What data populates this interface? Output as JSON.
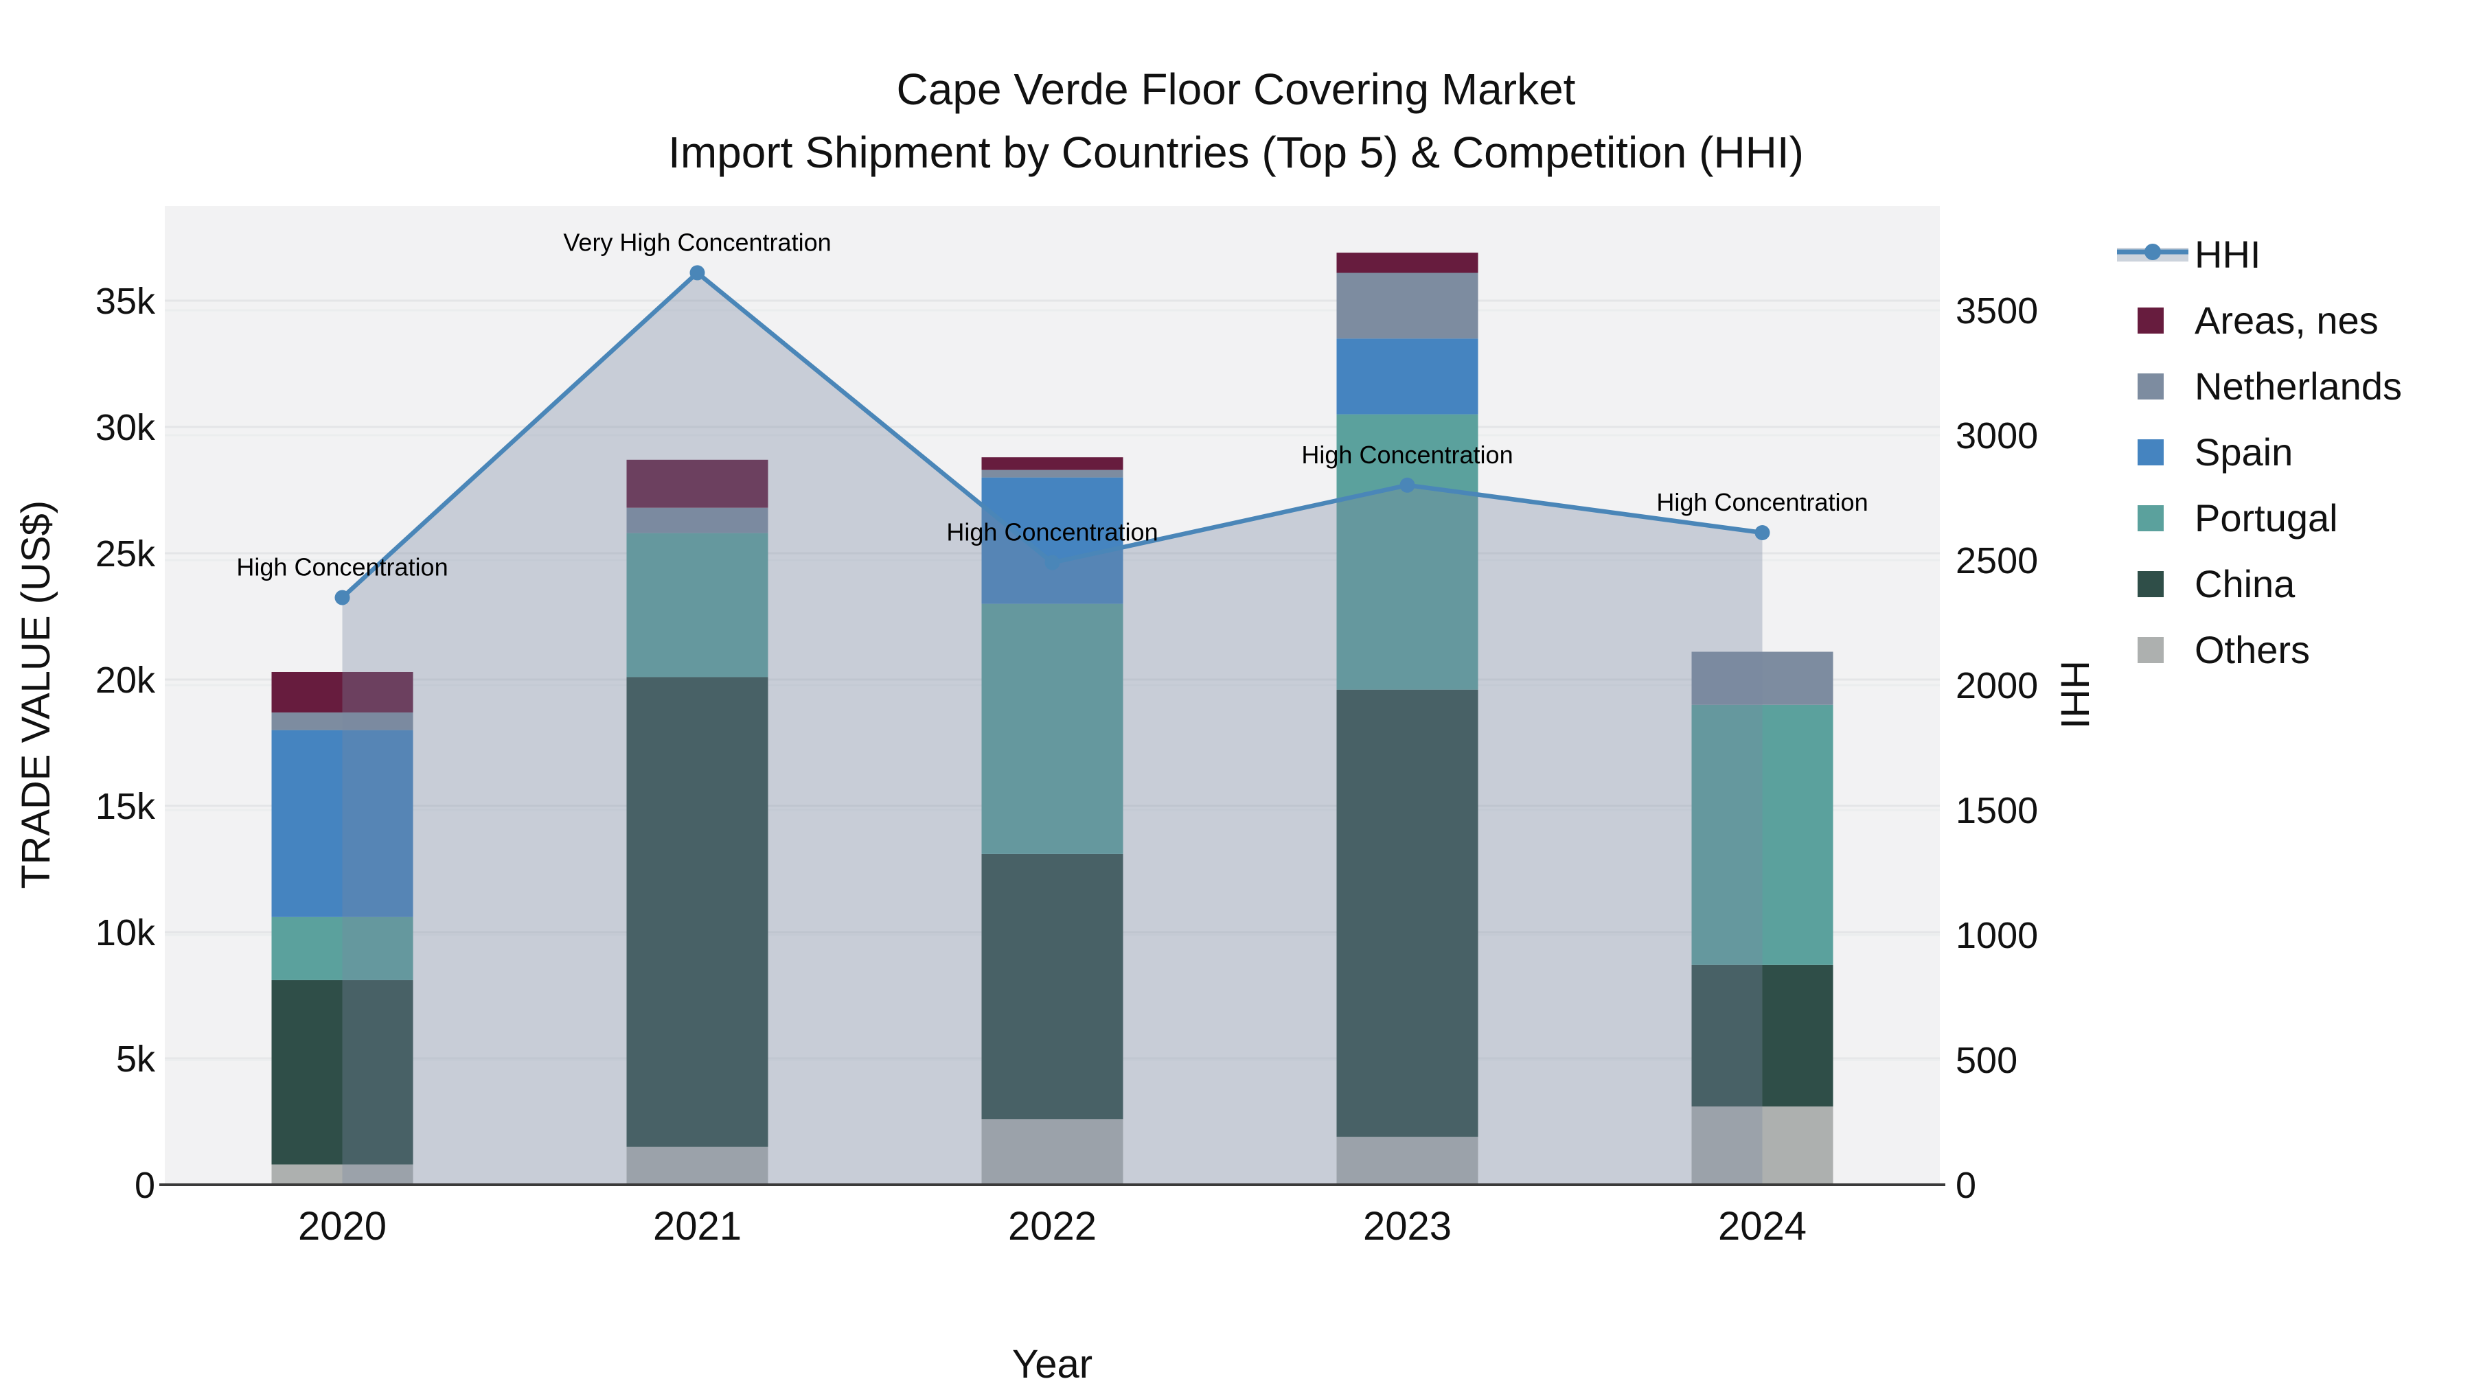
{
  "title": {
    "line1": "Cape Verde Floor Covering Market",
    "line2": "Import Shipment by Countries (Top 5) & Competition (HHI)"
  },
  "axes": {
    "x": {
      "label": "Year",
      "categories": [
        "2020",
        "2021",
        "2022",
        "2023",
        "2024"
      ]
    },
    "y_left": {
      "label": "TRADE VALUE (US$)",
      "tick_labels": [
        "0",
        "5k",
        "10k",
        "15k",
        "20k",
        "25k",
        "30k",
        "35k"
      ],
      "tick_values": [
        0,
        5000,
        10000,
        15000,
        20000,
        25000,
        30000,
        35000
      ]
    },
    "y_right": {
      "label": "HHI",
      "tick_labels": [
        "0",
        "500",
        "1000",
        "1500",
        "2000",
        "2500",
        "3000",
        "3500"
      ],
      "tick_values": [
        0,
        500,
        1000,
        1500,
        2000,
        2500,
        3000,
        3500
      ]
    }
  },
  "legend": {
    "entries": [
      "HHI",
      "Areas, nes",
      "Netherlands",
      "Spain",
      "Portugal",
      "China",
      "Others"
    ]
  },
  "colors": {
    "hhi_line": "#4a86b8",
    "hhi_area_fill": "rgba(121,136,161,0.34)",
    "hhi_area_swatch": "#ccd3dc",
    "plot_bg": "#f2f2f3",
    "grid_left": "#e4e5e7",
    "grid_right": "#ebedee",
    "axis_line": "#3a3a3a",
    "series": {
      "Areas, nes": "#671c3e",
      "Netherlands": "#7d8ca0",
      "Spain": "#4584c0",
      "Portugal": "#5ba19d",
      "China": "#2f4e48",
      "Others": "#adb0af"
    }
  },
  "chart_data": {
    "type": "bar",
    "subtype": "stacked-bars-with-dual-axis-line",
    "title": "Cape Verde Floor Covering Market — Import Shipment by Countries (Top 5) & Competition (HHI)",
    "xlabel": "Year",
    "ylabel_left": "TRADE VALUE (US$)",
    "ylabel_right": "HHI",
    "ylim_left": [
      0,
      38750
    ],
    "ylim_right": [
      0,
      3920
    ],
    "grid": true,
    "legend_position": "right",
    "categories": [
      "2020",
      "2021",
      "2022",
      "2023",
      "2024"
    ],
    "series": [
      {
        "name": "Others",
        "values": [
          800,
          1500,
          2600,
          1900,
          3100
        ]
      },
      {
        "name": "China",
        "values": [
          7300,
          18600,
          10500,
          17700,
          5600
        ]
      },
      {
        "name": "Portugal",
        "values": [
          2500,
          5700,
          9900,
          10900,
          10300
        ]
      },
      {
        "name": "Spain",
        "values": [
          7400,
          0,
          5000,
          3000,
          0
        ]
      },
      {
        "name": "Netherlands",
        "values": [
          700,
          1000,
          300,
          2600,
          2100
        ]
      },
      {
        "name": "Areas, nes",
        "values": [
          1600,
          1900,
          500,
          800,
          0
        ]
      }
    ],
    "totals": [
      20300,
      28700,
      28800,
      36900,
      21100
    ],
    "hhi": {
      "name": "HHI",
      "values": [
        2350,
        3650,
        2490,
        2800,
        2610
      ],
      "annotations": [
        "High Concentration",
        "Very High Concentration",
        "High Concentration",
        "High Concentration",
        "High Concentration"
      ]
    }
  }
}
